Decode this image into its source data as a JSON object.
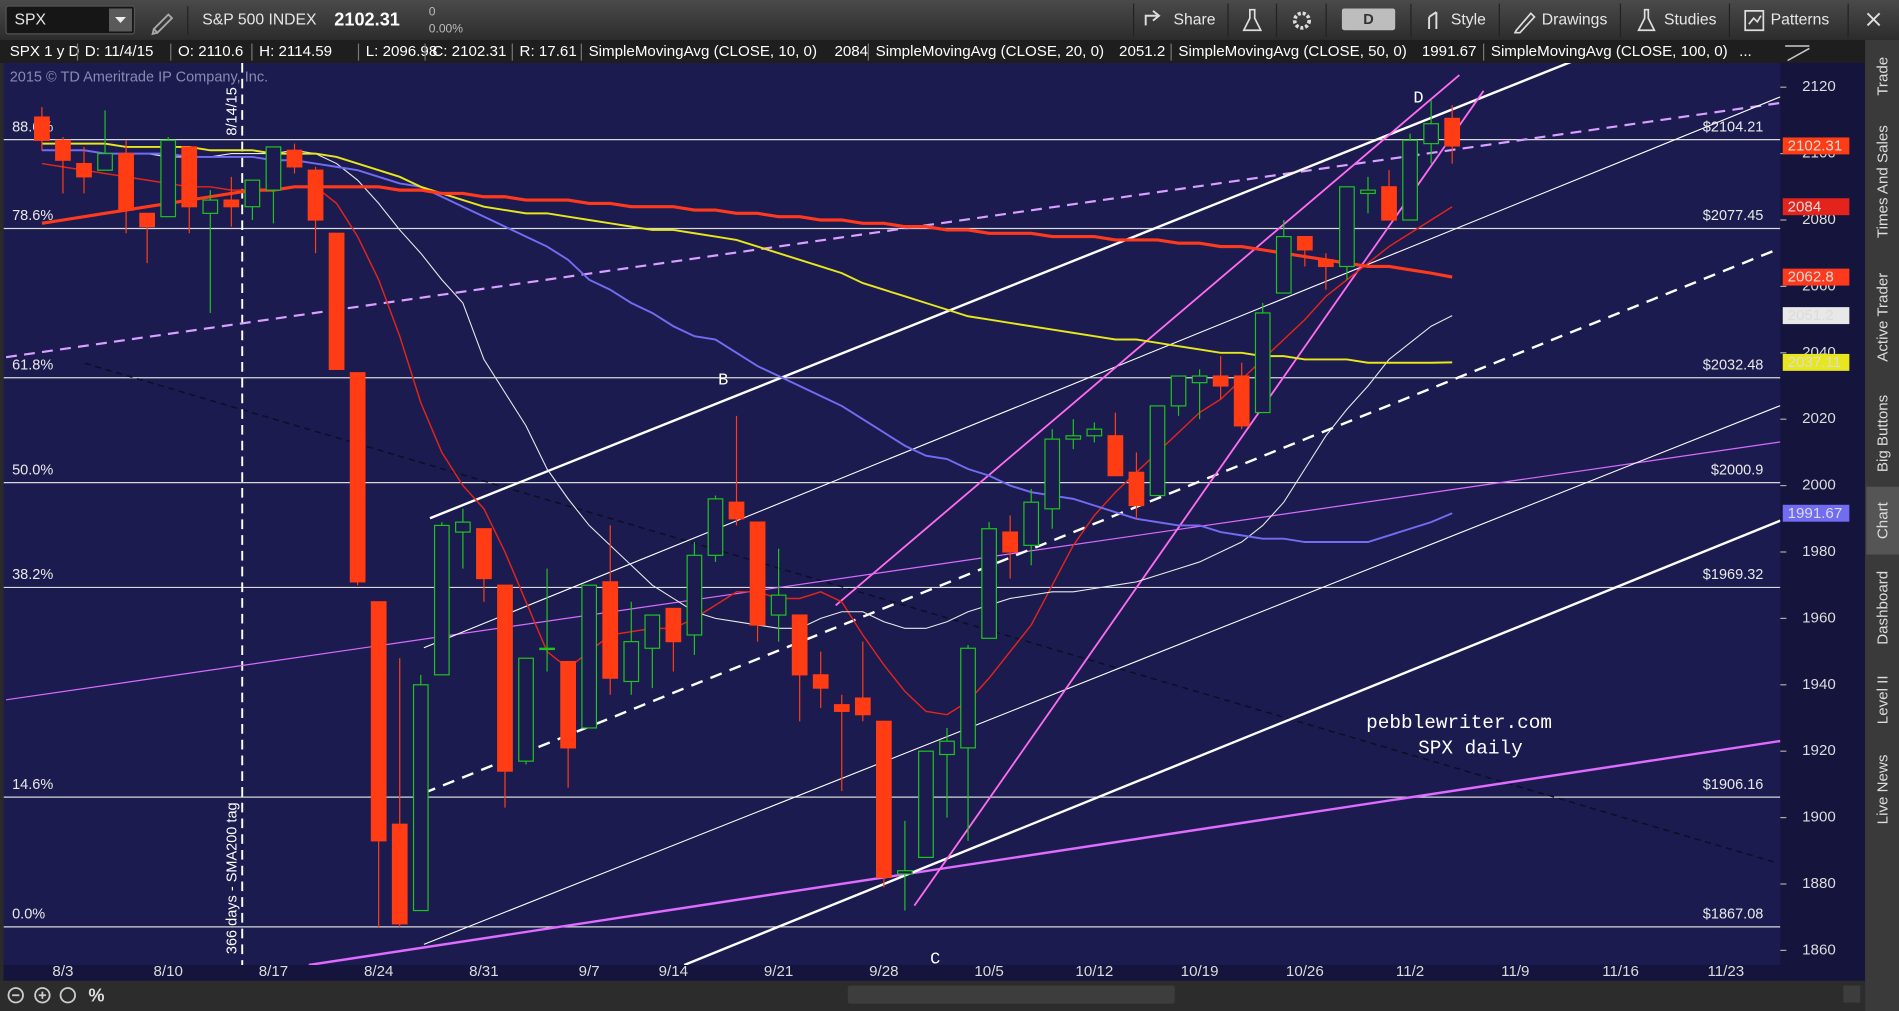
{
  "toolbar": {
    "symbol": "SPX",
    "description": "S&P 500 INDEX",
    "last": 2102.31,
    "change": 0,
    "change_pct": "0.00%",
    "share": "Share",
    "aggregation": "D",
    "style": "Style",
    "drawings": "Drawings",
    "studies": "Studies",
    "patterns": "Patterns"
  },
  "chart_header": [
    "SPX 1 y D",
    "D: 11/4/15",
    "O: 2110.6",
    "H: 2114.59",
    "L: 2096.98",
    "C: 2102.31",
    "R: 17.61"
  ],
  "legend_overflow": "...",
  "copyright": "2015 © TD Ameritrade IP Company, Inc.",
  "sidebar": [
    "Trade",
    "Times And Sales",
    "Active Trader",
    "Big Buttons",
    "Chart",
    "Dashboard",
    "Level II",
    "Live News"
  ],
  "bottom_bar": {
    "percent": "%"
  },
  "chart_data": {
    "type": "candlestick",
    "categories": [
      null,
      "8/3",
      null,
      null,
      null,
      null,
      "8/10",
      null,
      null,
      null,
      null,
      "8/17",
      null,
      null,
      null,
      null,
      "8/24",
      null,
      null,
      null,
      null,
      "8/31",
      null,
      null,
      null,
      null,
      "9/7",
      null,
      null,
      null,
      "9/14",
      null,
      null,
      null,
      null,
      "9/21",
      null,
      null,
      null,
      null,
      "9/28",
      null,
      null,
      null,
      null,
      "10/5",
      null,
      null,
      null,
      null,
      "10/12",
      null,
      null,
      null,
      null,
      "10/19",
      null,
      null,
      null,
      null,
      "10/26",
      null,
      null,
      null,
      null,
      "11/2",
      null,
      null,
      null,
      null,
      "11/9",
      null,
      null,
      null,
      null,
      "11/16",
      null,
      null,
      null,
      null,
      "11/23",
      null,
      null
    ],
    "open": [
      2111,
      2104,
      2097,
      2095,
      2100,
      2082,
      2081,
      2102,
      2082,
      2086,
      2084,
      2089,
      2101,
      2095,
      2076,
      2034,
      1965,
      1898,
      1872,
      1943,
      1986,
      1987,
      1970,
      1917,
      1951,
      1947,
      1927,
      1971,
      1941,
      1951,
      1963,
      1955,
      1979,
      1995,
      1989,
      1961,
      1961,
      1943,
      1934,
      1936,
      1929,
      1883,
      1888,
      1919,
      1921,
      1954,
      1986,
      1982,
      1993,
      2014,
      2015,
      2015,
      2004,
      1997,
      2024,
      2031,
      2033,
      2033,
      2022,
      2058,
      2075,
      2068,
      2066,
      2088,
      2090,
      2080,
      2103,
      2110.6,
      null,
      null,
      null,
      null,
      null,
      null,
      null,
      null,
      null,
      null,
      null,
      null,
      null,
      null,
      null
    ],
    "high": [
      2114,
      2105,
      2102,
      2113,
      2104,
      2082,
      2105,
      2102,
      2089,
      2093,
      2092,
      2102,
      2103,
      2096,
      2076,
      2034,
      1965,
      1948,
      1943,
      1989,
      1993,
      1987,
      1970,
      1948,
      1975,
      1947,
      1970,
      1988,
      1965,
      1961,
      1963,
      1983,
      1997,
      2021,
      1989,
      1981,
      1961,
      1950,
      1937,
      1953,
      1929,
      1899,
      1920,
      1927,
      1952,
      1989,
      1991,
      1999,
      2017,
      2020,
      2019,
      2022,
      2010,
      2024,
      2033,
      2035,
      2039,
      2037,
      2055,
      2080,
      2075,
      2070,
      2090,
      2093,
      2095,
      2106,
      2116,
      2114.59,
      null,
      null,
      null,
      null,
      null,
      null,
      null,
      null,
      null,
      null,
      null,
      null,
      null,
      null,
      null
    ],
    "low": [
      2101,
      2088,
      2088,
      2095,
      2076,
      2067,
      2081,
      2076,
      2052,
      2078,
      2080,
      2079,
      2094,
      2070,
      2035,
      1970,
      1867,
      1867,
      1872,
      1943,
      1975,
      1965,
      1903,
      1916,
      1944,
      1909,
      1927,
      1937,
      1937,
      1939,
      1944,
      1949,
      1977,
      1988,
      1953,
      1953,
      1929,
      1933,
      1908,
      1929,
      1879,
      1872,
      1888,
      1900,
      1893,
      1954,
      1972,
      1976,
      1987,
      2011,
      2013,
      2003,
      1990,
      1997,
      2021,
      2020,
      2026,
      2017,
      2022,
      2058,
      2066,
      2059,
      2062,
      2082,
      2080,
      2080,
      2097,
      2096.98,
      null,
      null,
      null,
      null,
      null,
      null,
      null,
      null,
      null,
      null,
      null,
      null,
      null,
      null,
      null
    ],
    "close": [
      2104,
      2098,
      2093,
      2100,
      2083,
      2078,
      2104,
      2084,
      2086,
      2084,
      2092,
      2102,
      2096,
      2080,
      2035,
      1971,
      1893,
      1868,
      1940,
      1988,
      1989,
      1972,
      1914,
      1948,
      1951,
      1921,
      1970,
      1942,
      1953,
      1961,
      1953,
      1979,
      1996,
      1990,
      1958,
      1967,
      1943,
      1939,
      1932,
      1931,
      1882,
      1884,
      1920,
      1923,
      1951,
      1987,
      1980,
      1995,
      2014,
      2015,
      2017,
      2003,
      1994,
      2024,
      2033,
      2033,
      2030,
      2018,
      2052,
      2075,
      2071,
      2066,
      2090,
      2089,
      2080,
      2104,
      2109,
      2102.31,
      null,
      null,
      null,
      null,
      null,
      null,
      null,
      null,
      null,
      null,
      null,
      null,
      null,
      null,
      null
    ],
    "up_color": "#1fc21f",
    "down_color": "#ff3c14",
    "series": [
      {
        "name": "SimpleMovingAvg (CLOSE, 10, 0)",
        "color": "#e3241c",
        "width": 1.2,
        "values": [
          2097,
          2096,
          2095,
          2094,
          2093,
          2092,
          2091,
          2090,
          2090,
          2089,
          2089,
          2089,
          2090,
          2090,
          2085,
          2075,
          2062,
          2045,
          2025,
          2010,
          2000,
          1993,
          1980,
          1965,
          1950,
          1945,
          1950,
          1955,
          1956,
          1957,
          1957,
          1960,
          1964,
          1968,
          1968,
          1966,
          1966,
          1968,
          1965,
          1955,
          1946,
          1938,
          1932,
          1931,
          1935,
          1942,
          1950,
          1958,
          1970,
          1982,
          1991,
          1998,
          2004,
          2010,
          2016,
          2022,
          2026,
          2032,
          2038,
          2044,
          2050,
          2057,
          2062,
          2067,
          2072,
          2076,
          2080,
          2084,
          null,
          null,
          null,
          null,
          null,
          null,
          null,
          null,
          null,
          null,
          null,
          null,
          null,
          null,
          null
        ]
      },
      {
        "name": "SimpleMovingAvg (CLOSE, 20, 0)",
        "color": "#e8e8e8",
        "width": 0.9,
        "values": [
          2101,
          2101,
          2101,
          2100,
          2100,
          2100,
          2099,
          2099,
          2099,
          2100,
          2100,
          2100,
          2101,
          2100,
          2097,
          2092,
          2085,
          2077,
          2070,
          2062,
          2055,
          2038,
          2028,
          2018,
          2005,
          1996,
          1988,
          1982,
          1976,
          1970,
          1966,
          1962,
          1960,
          1959,
          1958,
          1957,
          1957,
          1960,
          1962,
          1962,
          1959,
          1957,
          1957,
          1959,
          1962,
          1964,
          1966,
          1967,
          1968,
          1968,
          1969,
          1970,
          1971,
          1973,
          1975,
          1977,
          1980,
          1983,
          1988,
          1995,
          2005,
          2015,
          2023,
          2030,
          2038,
          2043,
          2048,
          2051.2,
          null,
          null,
          null,
          null,
          null,
          null,
          null,
          null,
          null,
          null,
          null,
          null,
          null,
          null,
          null
        ]
      },
      {
        "name": "SimpleMovingAvg (CLOSE, 50, 0)",
        "color": "#716cf2",
        "width": 1.6,
        "values": [
          2101,
          2101,
          2101,
          2100,
          2100,
          2100,
          2100,
          2099,
          2099,
          2099,
          2099,
          2098,
          2098,
          2097,
          2096,
          2095,
          2093,
          2091,
          2090,
          2087,
          2084,
          2081,
          2078,
          2075,
          2072,
          2068,
          2062,
          2059,
          2055,
          2052,
          2048,
          2045,
          2044,
          2040,
          2036,
          2033,
          2030,
          2027,
          2024,
          2020,
          2016,
          2012,
          2009,
          2008,
          2005,
          2003,
          2000,
          1998,
          1997,
          1996,
          1994,
          1992,
          1990,
          1989,
          1988,
          1988,
          1986,
          1985,
          1984,
          1984,
          1983,
          1983,
          1983,
          1983,
          1985,
          1987,
          1989,
          1991.67,
          null,
          null,
          null,
          null,
          null,
          null,
          null,
          null,
          null,
          null,
          null,
          null,
          null,
          null,
          null
        ]
      },
      {
        "name": "SimpleMovingAvg (CLOSE, 100, 0)",
        "color": "#e8e61c",
        "width": 1.6,
        "values": [
          2103,
          2103,
          2103,
          2103,
          2102,
          2102,
          2102,
          2102,
          2101,
          2101,
          2101,
          2100,
          2100,
          2100,
          2099,
          2097,
          2095,
          2093,
          2090,
          2088,
          2086,
          2084,
          2083,
          2082,
          2082,
          2081,
          2080,
          2079,
          2078,
          2077,
          2077,
          2076,
          2075,
          2074,
          2072,
          2070,
          2068,
          2066,
          2064,
          2061,
          2059,
          2057,
          2055,
          2053,
          2051,
          2050,
          2049,
          2048,
          2047,
          2046,
          2045,
          2044,
          2044,
          2043,
          2042,
          2041,
          2040,
          2040,
          2039,
          2039,
          2038,
          2038,
          2038,
          2037,
          2037,
          2037,
          2037,
          2037.11,
          null,
          null,
          null,
          null,
          null,
          null,
          null,
          null,
          null,
          null,
          null,
          null,
          null,
          null,
          null
        ]
      },
      {
        "color": "#ff3a1c",
        "width": 2.6,
        "values": [
          2079,
          2080,
          2081,
          2082,
          2083,
          2084,
          2085,
          2086,
          2087,
          2088,
          2089,
          2089,
          2090,
          2090,
          2090,
          2090,
          2090,
          2089,
          2089,
          2088,
          2088,
          2087,
          2087,
          2086,
          2086,
          2086,
          2085,
          2085,
          2084,
          2084,
          2084,
          2083,
          2083,
          2082,
          2082,
          2081,
          2081,
          2080,
          2080,
          2079,
          2079,
          2078,
          2078,
          2077,
          2077,
          2076,
          2076,
          2076,
          2075,
          2075,
          2075,
          2074,
          2074,
          2074,
          2073,
          2073,
          2072,
          2072,
          2071,
          2070,
          2069,
          2068,
          2067,
          2066,
          2066,
          2065,
          2064,
          2062.8,
          null,
          null,
          null,
          null,
          null,
          null,
          null,
          null,
          null,
          null,
          null,
          null,
          null,
          null,
          null
        ]
      }
    ],
    "ylim": [
      1855.6,
      2127.3
    ],
    "yticks": [
      1860,
      1880,
      1900,
      1920,
      1940,
      1960,
      1980,
      2000,
      2020,
      2040,
      2060,
      2080,
      2100,
      2120
    ],
    "grid": false,
    "fib_levels": [
      {
        "label": "88.6%",
        "value": 2104.21,
        "value_label": "$2104.21"
      },
      {
        "label": "78.6%",
        "value": 2077.45,
        "value_label": "$2077.45"
      },
      {
        "label": "61.8%",
        "value": 2032.48,
        "value_label": "$2032.48"
      },
      {
        "label": "50.0%",
        "value": 2000.9,
        "value_label": "$2000.9"
      },
      {
        "label": "38.2%",
        "value": 1969.32,
        "value_label": "$1969.32"
      },
      {
        "label": "14.6%",
        "value": 1906.16,
        "value_label": "$1906.16"
      },
      {
        "label": "0.0%",
        "value": 1867.08,
        "value_label": "$1867.08"
      }
    ],
    "annotations": [
      "B",
      "C",
      "D",
      "pebblewriter.com",
      "SPX daily",
      "8/14/15",
      "366 days - SMA200 tag"
    ]
  }
}
